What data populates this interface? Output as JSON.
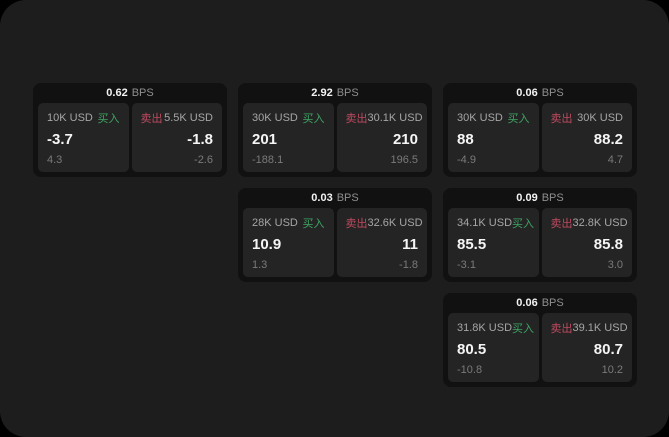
{
  "labels": {
    "unit": "BPS",
    "buy": "买入",
    "sell": "卖出"
  },
  "colors": {
    "page_background": "#1d1d1d",
    "card_background": "#111112",
    "panel_background": "#242425",
    "buy_green": "#3fa463",
    "sell_red": "#bf4a5e",
    "primary_text": "#f5f5f5",
    "secondary_text": "#a6a6a6",
    "muted_text": "#7a7a7a"
  },
  "cards": [
    {
      "bps": "0.62",
      "buy": {
        "amount": "10K USD",
        "value": "-3.7",
        "delta": "4.3"
      },
      "sell": {
        "amount": "5.5K USD",
        "value": "-1.8",
        "delta": "-2.6"
      }
    },
    {
      "bps": "2.92",
      "buy": {
        "amount": "30K USD",
        "value": "201",
        "delta": "-188.1"
      },
      "sell": {
        "amount": "30.1K USD",
        "value": "210",
        "delta": "196.5"
      }
    },
    {
      "bps": "0.06",
      "buy": {
        "amount": "30K USD",
        "value": "88",
        "delta": "-4.9"
      },
      "sell": {
        "amount": "30K USD",
        "value": "88.2",
        "delta": "4.7"
      }
    },
    {
      "bps": "0.03",
      "buy": {
        "amount": "28K USD",
        "value": "10.9",
        "delta": "1.3"
      },
      "sell": {
        "amount": "32.6K USD",
        "value": "11",
        "delta": "-1.8"
      }
    },
    {
      "bps": "0.09",
      "buy": {
        "amount": "34.1K USD",
        "value": "85.5",
        "delta": "-3.1"
      },
      "sell": {
        "amount": "32.8K USD",
        "value": "85.8",
        "delta": "3.0"
      }
    },
    {
      "bps": "0.06",
      "buy": {
        "amount": "31.8K USD",
        "value": "80.5",
        "delta": "-10.8"
      },
      "sell": {
        "amount": "39.1K USD",
        "value": "80.7",
        "delta": "10.2"
      }
    }
  ]
}
